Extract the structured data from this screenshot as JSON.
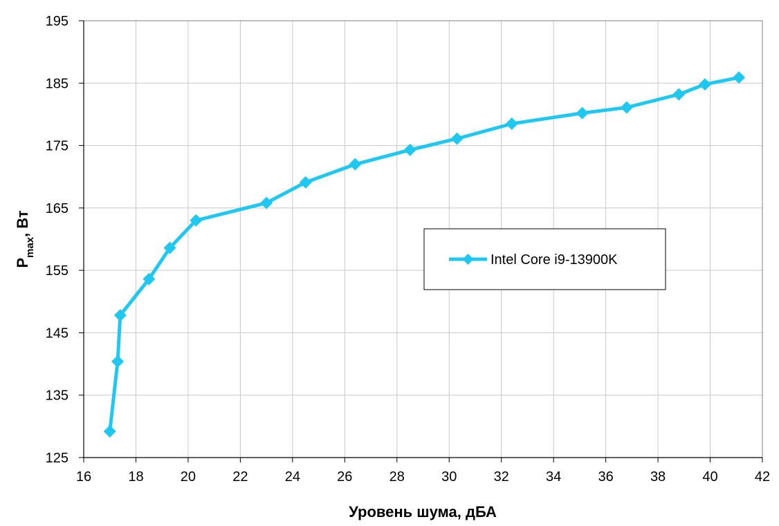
{
  "chart_data": {
    "type": "line",
    "title": "",
    "xlabel": "Уровень шума, дБА",
    "ylabel_main": "P",
    "ylabel_sub": "max",
    "ylabel_tail": ", Вт",
    "xlim": [
      16,
      42
    ],
    "ylim": [
      125,
      195
    ],
    "xticks": [
      16,
      18,
      20,
      22,
      24,
      26,
      28,
      30,
      32,
      34,
      36,
      38,
      40,
      42
    ],
    "yticks": [
      125,
      135,
      145,
      155,
      165,
      175,
      185,
      195
    ],
    "grid": true,
    "legend_position": "right",
    "series": [
      {
        "name": "Intel Core i9-13900K",
        "color": "#1ec8f0",
        "marker": "diamond",
        "x": [
          17.0,
          17.3,
          17.4,
          18.5,
          19.3,
          20.3,
          23.0,
          24.5,
          26.4,
          28.5,
          30.3,
          32.4,
          35.1,
          36.8,
          38.8,
          39.8,
          41.1
        ],
        "y": [
          129.2,
          140.4,
          147.8,
          153.6,
          158.6,
          163.0,
          165.8,
          169.1,
          172.0,
          174.3,
          176.1,
          178.5,
          180.2,
          181.1,
          183.2,
          184.8,
          185.9
        ]
      }
    ]
  }
}
